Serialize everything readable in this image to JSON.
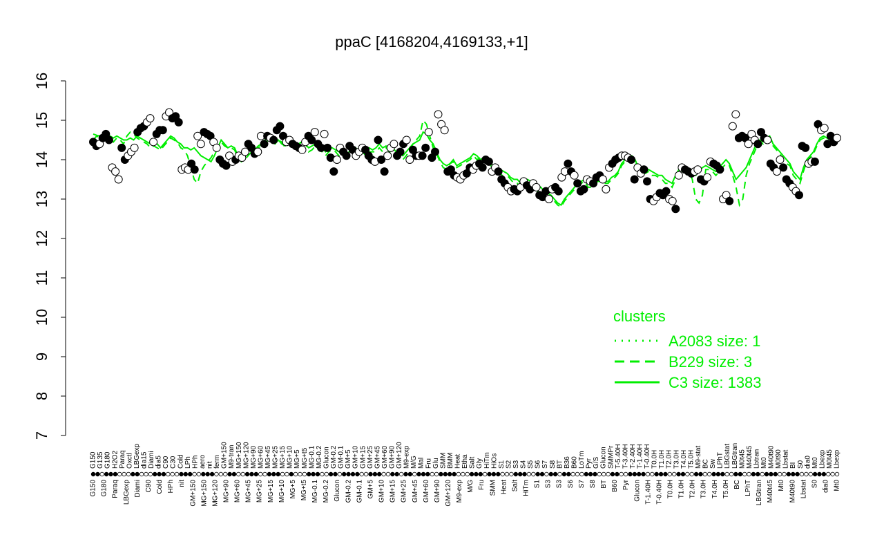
{
  "chart_data": {
    "type": "scatter",
    "title": "ppaC [4168204,4169133,+1]",
    "xlabel": "",
    "ylabel": "",
    "ylim": [
      7,
      16
    ],
    "yticks": [
      7,
      8,
      9,
      10,
      11,
      12,
      13,
      14,
      15,
      16
    ],
    "grid": false,
    "n_samples": 170,
    "top_labels": [
      "G150",
      "G135",
      "G180",
      "H2O2",
      "Paraq",
      "Oxctl",
      "LBGexp",
      "dia15",
      "Diami",
      "dia5",
      "C90",
      "C30",
      "Cold",
      "LPh",
      "HPh",
      "aero",
      "nit",
      "ferm",
      "GM+150",
      "M9-tran",
      "MG+150",
      "MG+120",
      "MG+90",
      "MG+60",
      "MG+45",
      "MG+25",
      "MG+15",
      "MG+10",
      "MG+5",
      "MG+t5",
      "MG-0.1",
      "MG-0.2",
      "Glucon",
      "GM-0.2",
      "GM-0.1",
      "GM+5",
      "GM+10",
      "GM+15",
      "GM+25",
      "GM+45",
      "GM+60",
      "GM+90",
      "GM+120",
      "M9-exp",
      "M/G",
      "Mal",
      "Fru",
      "Glu",
      "SMM",
      "BMM",
      "Heat",
      "Etha",
      "Salt",
      "Gly",
      "HiTm",
      "HiOs",
      "S1",
      "S2",
      "S3",
      "S4",
      "S5",
      "S6",
      "S7",
      "S8",
      "BT",
      "B36",
      "B60",
      "LoTm",
      "Pyr",
      "G/S",
      "Glucon",
      "SMMPr",
      "T-5.40H",
      "T-3.40H",
      "T-2.40H",
      "T-1.40H",
      "T-0.40H",
      "T0.0H",
      "T1.0H",
      "T2.0H",
      "T3.0H",
      "T4.0H",
      "T5.0H",
      "M9-stat",
      "BC",
      "Sw",
      "LPhT",
      "LBGstat",
      "LBGtran",
      "M0t45",
      "M40t45",
      "Lbtran",
      "Mt0",
      "M40t90",
      "M0t90",
      "Lbstat",
      "BI",
      "S0",
      "dia0",
      "Mt0",
      "Lbexp",
      "M0t45",
      "Lbexp"
    ],
    "bottom_labels": [
      "G150",
      "G180",
      "Paraq",
      "LBGexp",
      "Diami",
      "C90",
      "Cold",
      "HPh",
      "nit",
      "GM+150",
      "MG+150",
      "MG+120",
      "MG+90",
      "MG+60",
      "MG+45",
      "MG+25",
      "MG+15",
      "MG+10",
      "MG+5",
      "MG+t5",
      "MG-0.1",
      "MG-0.2",
      "Glucon",
      "GM-0.2",
      "GM-0.1",
      "GM+5",
      "GM+10",
      "GM+15",
      "GM+25",
      "GM+45",
      "GM+60",
      "GM+90",
      "GM+120",
      "M9-exp",
      "M/G",
      "Fru",
      "SMM",
      "Heat",
      "Salt",
      "HiTm",
      "S1",
      "S3",
      "S3",
      "S6",
      "S7",
      "S8",
      "BT",
      "B60",
      "Pyr",
      "Glucon",
      "T-1.40H",
      "T-0.40H",
      "T0.0H",
      "T1.0H",
      "T2.0H",
      "T3.0H",
      "T4.0H",
      "T5.0H",
      "BC",
      "LPhT",
      "LBGtran",
      "M40t45",
      "Mt0",
      "M40t90",
      "Lbstat",
      "S0",
      "dia0",
      "Mt0"
    ],
    "values": [
      14.45,
      14.35,
      14.4,
      14.55,
      14.65,
      14.5,
      13.8,
      13.7,
      13.5,
      14.3,
      14.0,
      14.1,
      14.2,
      14.3,
      14.7,
      14.8,
      14.85,
      14.95,
      15.05,
      14.45,
      14.65,
      14.75,
      14.75,
      15.1,
      15.2,
      15.05,
      15.1,
      14.95,
      13.75,
      13.8,
      13.75,
      13.9,
      13.75,
      14.6,
      14.4,
      14.7,
      14.65,
      14.6,
      14.45,
      14.3,
      14.0,
      13.9,
      13.85,
      14.1,
      13.95,
      14.0,
      14.1,
      14.05,
      14.2,
      14.4,
      14.3,
      14.15,
      14.2,
      14.6,
      14.4,
      14.6,
      14.55,
      14.5,
      14.75,
      14.85,
      14.6,
      14.45,
      14.5,
      14.4,
      14.35,
      14.3,
      14.25,
      14.45,
      14.6,
      14.5,
      14.7,
      14.4,
      14.3,
      14.65,
      14.3,
      14.05,
      13.7,
      14.0,
      14.3,
      14.2,
      14.1,
      14.35,
      14.25,
      14.1,
      14.2,
      14.3,
      14.25,
      14.1,
      14.0,
      13.95,
      14.5,
      14.0,
      13.7,
      14.1,
      14.3,
      14.4,
      14.1,
      14.2,
      14.4,
      14.5,
      14.0,
      14.25,
      14.1,
      14.1,
      14.1,
      14.3,
      14.7,
      14.05,
      14.2,
      15.15,
      14.9,
      14.75,
      13.7,
      13.75,
      13.6,
      13.55,
      13.5,
      13.6,
      13.65,
      13.8,
      13.75,
      13.85,
      13.9,
      13.8,
      14.0,
      13.95,
      13.7,
      13.8,
      13.7,
      13.5,
      13.4,
      13.3,
      13.2,
      13.25,
      13.2,
      13.3,
      13.45,
      13.35,
      13.25,
      13.4,
      13.3,
      13.1,
      13.05,
      13.2,
      13.0,
      13.25,
      13.3,
      13.2,
      13.55,
      13.7,
      13.9,
      13.7,
      13.6,
      13.4,
      13.2,
      13.25,
      13.5,
      13.45,
      13.4,
      13.55,
      13.6,
      13.5,
      13.25,
      13.8,
      13.9,
      14.0,
      14.05,
      14.1,
      14.1,
      14.05,
      14.0,
      13.5,
      13.8,
      13.65,
      13.75,
      13.45,
      13.0,
      12.95,
      13.05,
      13.15,
      13.1,
      13.2,
      13.0,
      12.95,
      12.75,
      13.6,
      13.8,
      13.75,
      13.7,
      13.65,
      13.7,
      13.75,
      13.5,
      13.45,
      13.55,
      13.95,
      13.9,
      13.85,
      13.75,
      13.0,
      13.1,
      12.95,
      14.85,
      15.15,
      14.55,
      14.6,
      14.55,
      14.4,
      14.65,
      14.5,
      14.4,
      14.7,
      14.55,
      14.5,
      13.9,
      13.8,
      13.7,
      14.0,
      13.8,
      13.5,
      13.4,
      13.3,
      13.2,
      13.1,
      14.35,
      14.3,
      13.9,
      13.95,
      13.95,
      14.9,
      14.75,
      14.8,
      14.4,
      14.6,
      14.45,
      14.55
    ],
    "filled": [
      1,
      1,
      0,
      1,
      1,
      1,
      0,
      0,
      0,
      1,
      1,
      0,
      0,
      0,
      1,
      1,
      1,
      0,
      0,
      0,
      1,
      1,
      1,
      0,
      0,
      1,
      1,
      1,
      0,
      0,
      0,
      1,
      1,
      0,
      0,
      1,
      1,
      1,
      0,
      0,
      1,
      1,
      1,
      0,
      0,
      1,
      0,
      0,
      0,
      1,
      1,
      1,
      0,
      0,
      1,
      1,
      0,
      1,
      1,
      1,
      1,
      0,
      0,
      1,
      1,
      1,
      0,
      0,
      1,
      1,
      0,
      1,
      1,
      0,
      1,
      1,
      1,
      0,
      0,
      1,
      1,
      1,
      1,
      0,
      0,
      0,
      1,
      1,
      1,
      0,
      1,
      1,
      1,
      0,
      0,
      0,
      1,
      1,
      1,
      0,
      0,
      1,
      1,
      0,
      1,
      1,
      0,
      1,
      1,
      0,
      0,
      0,
      1,
      1,
      1,
      0,
      0,
      0,
      1,
      1,
      0,
      0,
      1,
      1,
      1,
      1,
      0,
      0,
      1,
      1,
      1,
      0,
      0,
      1,
      1,
      0,
      0,
      1,
      1,
      0,
      0,
      1,
      1,
      1,
      0,
      0,
      1,
      1,
      0,
      0,
      1,
      1,
      0,
      1,
      1,
      1,
      0,
      0,
      1,
      1,
      1,
      0,
      0,
      0,
      1,
      1,
      1,
      0,
      0,
      0,
      1,
      1,
      0,
      0,
      1,
      1,
      1,
      0,
      0,
      1,
      1,
      1,
      0,
      0,
      1,
      0,
      0,
      1,
      1,
      1,
      0,
      0,
      1,
      1,
      0,
      0,
      1,
      1,
      1,
      0,
      0,
      1,
      0,
      0,
      1,
      1,
      1,
      0,
      0,
      0,
      1,
      1,
      1,
      0,
      1,
      1,
      0,
      0,
      1,
      1,
      1,
      0,
      0,
      1,
      1,
      1,
      0,
      0,
      1,
      1,
      0,
      0,
      1,
      1,
      1,
      0,
      0,
      0,
      1,
      1
    ],
    "series": [
      {
        "values": [
          14.65,
          14.62,
          14.6,
          14.55,
          14.6,
          14.6,
          14.55,
          14.6,
          14.55,
          14.5,
          14.5,
          14.55,
          14.5,
          14.6,
          14.55,
          14.5,
          14.45,
          14.4,
          14.5,
          14.4,
          14.3,
          14.4,
          14.5,
          14.6,
          14.55,
          14.45,
          14.4,
          14.3,
          14.3,
          14.25,
          14.3,
          14.2,
          14.1,
          14.05,
          14.0,
          13.95,
          14.1,
          14.3,
          14.5,
          14.4,
          14.3,
          14.35,
          14.3,
          14.1,
          14.0,
          14.1,
          14.2,
          14.3,
          14.25,
          14.35,
          14.4,
          14.4,
          14.5,
          14.45,
          14.4,
          14.5,
          14.4,
          14.35,
          14.4,
          14.4,
          14.35,
          14.4,
          14.45,
          14.4,
          14.3,
          14.35,
          14.4,
          14.3,
          14.3,
          14.2,
          14.3,
          14.3,
          14.25,
          14.2,
          14.15,
          14.1,
          14.2,
          14.25,
          14.3,
          14.2,
          14.3,
          14.2,
          14.3,
          14.25,
          14.3,
          14.4,
          14.3,
          14.35,
          14.25,
          14.3,
          14.2,
          14.15,
          14.1,
          14.2,
          14.3,
          14.4,
          14.45,
          14.5,
          14.7,
          14.65,
          14.5,
          14.4,
          14.2,
          14.0,
          13.9,
          13.85,
          13.9,
          14.0,
          13.85,
          13.9,
          13.95,
          14.0,
          14.05,
          14.15,
          14.1,
          14.0,
          14.05,
          14.0,
          13.9,
          13.85,
          13.8,
          13.75,
          13.7,
          13.65,
          13.55,
          13.5,
          13.5,
          13.4,
          13.45,
          13.5,
          13.45,
          13.4,
          13.35,
          13.3,
          13.2,
          13.15,
          13.1,
          13.0,
          12.9,
          12.85,
          13.0,
          13.1,
          13.2,
          13.3,
          13.4,
          13.45,
          13.5,
          13.4,
          13.35,
          13.45,
          13.5,
          13.5,
          13.45,
          13.45,
          13.55,
          13.6,
          13.7,
          13.9,
          14.0,
          14.1,
          14.1,
          14.0,
          13.8,
          13.75,
          13.7,
          13.75,
          13.7,
          13.65,
          13.6,
          13.6,
          13.5,
          13.45,
          13.4,
          13.6,
          13.75,
          13.7,
          13.8,
          13.75,
          13.65,
          13.6,
          13.7,
          13.8,
          13.85,
          13.8,
          13.75,
          13.7,
          13.8,
          13.9,
          14.0,
          13.9,
          13.7,
          13.5,
          13.6,
          13.7,
          13.8,
          14.0,
          14.2,
          14.4,
          14.5,
          14.45,
          14.55,
          14.6,
          14.4,
          14.3,
          14.2,
          14.1,
          14.0,
          13.9,
          13.7,
          13.6,
          13.5,
          13.8,
          14.0,
          14.1,
          14.2,
          14.4,
          14.55,
          14.6,
          14.55,
          14.5,
          14.55,
          14.6
        ]
      },
      {
        "values": [
          14.5,
          14.6,
          14.55,
          14.5,
          14.5,
          14.55,
          14.45,
          14.55,
          14.5,
          14.4,
          14.6,
          14.7,
          14.65,
          14.55,
          14.5,
          14.45,
          14.4,
          14.3,
          14.35,
          14.3,
          14.25,
          14.35,
          14.45,
          14.55,
          14.5,
          14.45,
          14.3,
          14.25,
          14.1,
          13.8,
          13.5,
          13.4,
          13.7,
          13.85,
          13.95,
          14.05,
          14.2,
          14.3,
          14.45,
          14.35,
          14.3,
          14.3,
          14.25,
          14.05,
          13.95,
          14.0,
          14.1,
          14.2,
          14.2,
          14.3,
          14.35,
          14.5,
          14.6,
          14.5,
          14.45,
          14.5,
          14.45,
          14.3,
          14.4,
          14.35,
          14.3,
          14.35,
          14.5,
          14.45,
          14.2,
          14.25,
          14.35,
          14.25,
          14.2,
          14.1,
          14.2,
          14.25,
          14.2,
          14.1,
          14.05,
          14.05,
          14.1,
          14.2,
          14.25,
          14.1,
          14.2,
          14.1,
          14.2,
          14.2,
          14.2,
          14.3,
          14.2,
          14.3,
          14.2,
          14.2,
          14.05,
          14.05,
          14.0,
          14.1,
          14.25,
          14.4,
          14.5,
          14.6,
          15.0,
          14.9,
          14.6,
          14.3,
          14.15,
          13.95,
          13.8,
          13.75,
          13.9,
          13.95,
          13.8,
          13.85,
          13.9,
          13.95,
          14.0,
          14.1,
          14.0,
          14.05,
          14.1,
          13.9,
          13.85,
          13.8,
          13.7,
          13.65,
          13.55,
          13.6,
          13.5,
          13.4,
          13.4,
          13.3,
          13.4,
          13.4,
          13.35,
          13.3,
          13.2,
          13.15,
          13.1,
          13.05,
          13.0,
          12.95,
          12.85,
          12.8,
          12.95,
          13.05,
          13.15,
          13.25,
          13.35,
          13.4,
          13.45,
          13.3,
          13.3,
          13.4,
          13.45,
          13.45,
          13.4,
          13.4,
          13.5,
          13.55,
          13.65,
          13.85,
          13.95,
          14.05,
          14.05,
          13.95,
          13.75,
          13.7,
          13.65,
          13.7,
          13.6,
          13.6,
          13.55,
          13.5,
          13.4,
          13.4,
          13.3,
          13.5,
          13.7,
          13.65,
          13.7,
          13.7,
          13.5,
          13.0,
          12.9,
          13.1,
          13.75,
          13.75,
          13.7,
          13.6,
          13.7,
          13.8,
          13.9,
          13.85,
          13.6,
          13.3,
          12.85,
          13.0,
          13.6,
          13.9,
          14.1,
          14.3,
          14.45,
          14.4,
          14.5,
          14.55,
          14.35,
          14.25,
          14.15,
          14.0,
          13.9,
          13.85,
          13.6,
          13.5,
          13.4,
          13.7,
          13.95,
          14.05,
          14.15,
          14.35,
          14.5,
          14.55,
          14.5,
          14.45,
          14.5,
          14.55
        ]
      }
    ],
    "legend": {
      "title": "clusters",
      "position": "bottom-right",
      "entries": [
        {
          "label": "A2083 size: 1",
          "style": "dotted"
        },
        {
          "label": "B229 size: 3",
          "style": "dashed"
        },
        {
          "label": "C3 size: 1383",
          "style": "solid"
        }
      ]
    },
    "colors": {
      "series": "#00ee00",
      "points": "#000000"
    }
  }
}
